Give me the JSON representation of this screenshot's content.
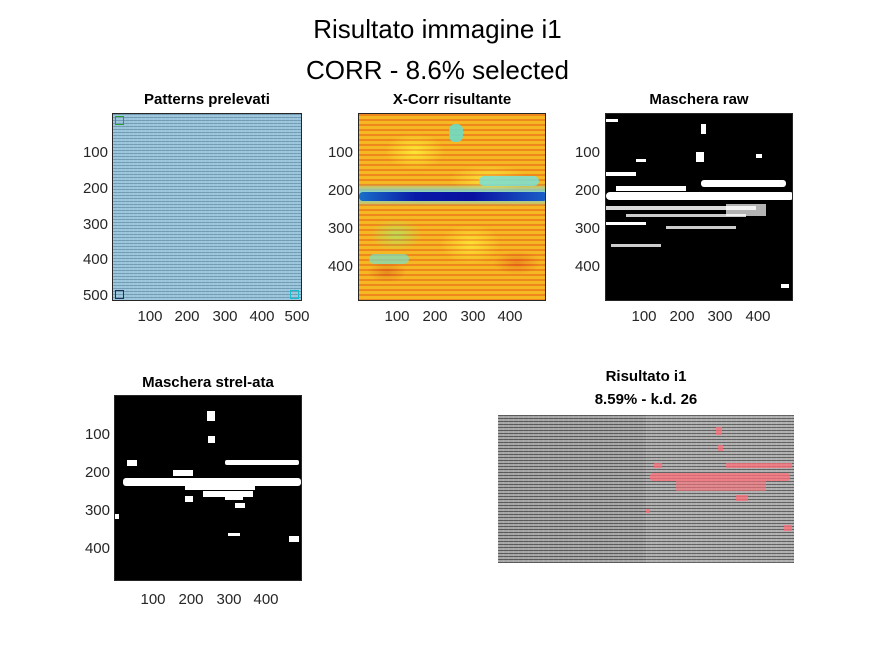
{
  "figure": {
    "title_line1": "Risultato immagine i1",
    "title_line2": "CORR - 8.6% selected"
  },
  "panels": {
    "patterns": {
      "title": "Patterns prelevati",
      "yticks": [
        "100",
        "200",
        "300",
        "400",
        "500"
      ],
      "xticks": [
        "100",
        "200",
        "300",
        "400",
        "500"
      ],
      "marker_colors": [
        "#2ca02c",
        "#1f2f5a",
        "#17becf"
      ]
    },
    "xcorr": {
      "title": "X-Corr risultante",
      "yticks": [
        "100",
        "200",
        "300",
        "400"
      ],
      "xticks": [
        "100",
        "200",
        "300",
        "400"
      ],
      "colormap": "jet"
    },
    "mask_raw": {
      "title": "Maschera raw",
      "yticks": [
        "100",
        "200",
        "300",
        "400"
      ],
      "xticks": [
        "100",
        "200",
        "300",
        "400"
      ]
    },
    "mask_strel": {
      "title": "Maschera strel-ata",
      "yticks": [
        "100",
        "200",
        "300",
        "400"
      ],
      "xticks": [
        "100",
        "200",
        "300",
        "400"
      ]
    },
    "result": {
      "title_line1": "Risultato i1",
      "title_line2": "8.59% - k.d. 26",
      "overlay_color": "#ff6e78"
    }
  }
}
